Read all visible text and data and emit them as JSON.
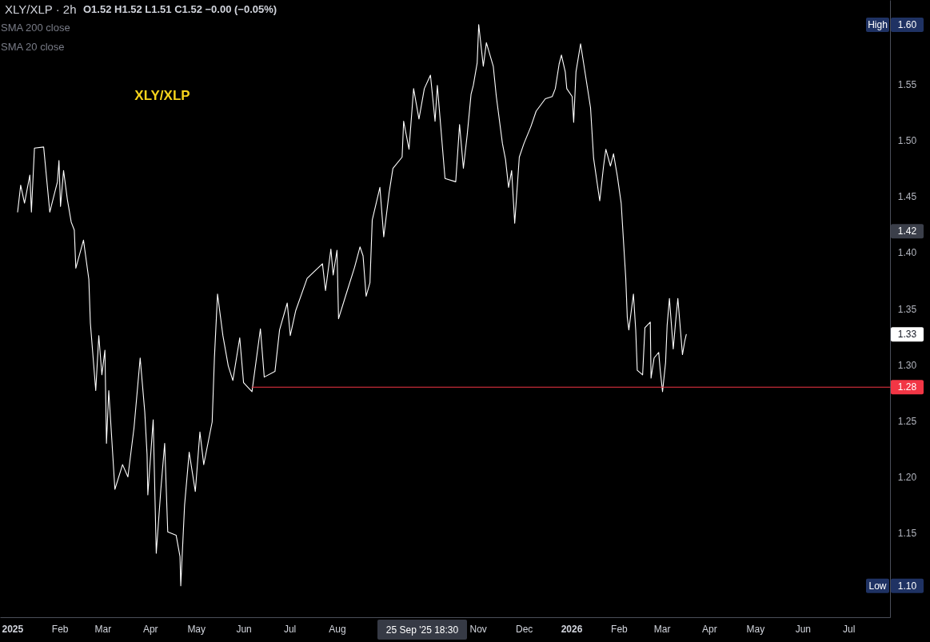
{
  "chart_data": {
    "type": "line",
    "title": "XLY/XLP · 2h",
    "annotations": [
      "O1.52 H1.52 L1.51 C1.52 −0.00 (−0.05%)",
      "SMA 200 close",
      "SMA 20 close",
      "XLY/XLP",
      "25 Sep '25  18:30",
      {
        "text": "High",
        "y": 1.603
      },
      {
        "text": "1.60",
        "y": 1.603
      },
      {
        "text": "1.42",
        "y": 1.419
      },
      {
        "text": "1.33",
        "y": 1.327
      },
      {
        "text": "1.28",
        "y": 1.28
      },
      {
        "text": "Low",
        "y": 1.103
      },
      {
        "text": "1.10",
        "y": 1.103
      }
    ],
    "xlim": [
      "2024-12-24",
      "2026-07-28"
    ],
    "ylim": [
      1.075,
      1.625
    ],
    "xticks": [
      {
        "value": "2025-01-01",
        "label": "2025"
      },
      {
        "value": "2025-02-01",
        "label": "Feb"
      },
      {
        "value": "2025-03-01",
        "label": "Mar"
      },
      {
        "value": "2025-04-01",
        "label": "Apr"
      },
      {
        "value": "2025-05-01",
        "label": "May"
      },
      {
        "value": "2025-06-01",
        "label": "Jun"
      },
      {
        "value": "2025-07-01",
        "label": "Jul"
      },
      {
        "value": "2025-08-01",
        "label": "Aug"
      },
      {
        "value": "2025-11-01",
        "label": "Nov"
      },
      {
        "value": "2025-12-01",
        "label": "Dec"
      },
      {
        "value": "2026-01-01",
        "label": "2026"
      },
      {
        "value": "2026-02-01",
        "label": "Feb"
      },
      {
        "value": "2026-03-01",
        "label": "Mar"
      },
      {
        "value": "2026-04-01",
        "label": "Apr"
      },
      {
        "value": "2026-05-01",
        "label": "May"
      },
      {
        "value": "2026-06-01",
        "label": "Jun"
      },
      {
        "value": "2026-07-01",
        "label": "Jul"
      }
    ],
    "yticks": [
      1.15,
      {
        "value": 1.2,
        "label": "1.20"
      },
      1.25,
      {
        "value": 1.3,
        "label": "1.30"
      },
      1.35,
      {
        "value": 1.4,
        "label": "1.40"
      },
      1.45,
      {
        "value": 1.5,
        "label": "1.50"
      },
      1.55
    ],
    "x": [
      "2025-01-04T12:00",
      "2025-01-06T12:00",
      "2025-01-09",
      "2025-01-12T12:00",
      "2025-01-13T12:00",
      "2025-01-15T12:00",
      "2025-01-21T12:00",
      "2025-01-25T12:00",
      "2025-01-30T12:00",
      "2025-01-31T12:00",
      "2025-02-01T12:00",
      "2025-02-03T12:00",
      "2025-02-06",
      "2025-02-08T12:00",
      "2025-02-10T12:00",
      "2025-02-11T12:00",
      "2025-02-16T12:00",
      "2025-02-20",
      "2025-02-21",
      "2025-02-24T12:00",
      "2025-02-26T12:00",
      "2025-02-28T12:00",
      "2025-03-02T12:00",
      "2025-03-03T12:00",
      "2025-03-05",
      "2025-03-09",
      "2025-03-14",
      "2025-03-17T12:00",
      "2025-03-21T12:00",
      "2025-03-25T12:00",
      "2025-03-28T12:00",
      "2025-03-30",
      "2025-03-30T12:00",
      "2025-04-03",
      "2025-04-05",
      "2025-04-08",
      "2025-04-10T12:00",
      "2025-04-12T12:00",
      "2025-04-18",
      "2025-04-20T12:00",
      "2025-04-21",
      "2025-04-23T12:00",
      "2025-04-26T12:00",
      "2025-04-30T12:00",
      "2025-05-03T12:00",
      "2025-05-06",
      "2025-05-11T12:00",
      "2025-05-13",
      "2025-05-15",
      "2025-05-18T12:00",
      "2025-05-22",
      "2025-05-25",
      "2025-05-29T12:00",
      "2025-06-01",
      "2025-06-06T12:00",
      "2025-06-12",
      "2025-06-14T12:00",
      "2025-06-21T12:00",
      "2025-06-24T12:00",
      "2025-06-29T12:00",
      "2025-07-01T12:00",
      "2025-07-05",
      "2025-07-12T12:00",
      "2025-07-22T12:00",
      "2025-07-24T12:00",
      "2025-07-28",
      "2025-07-29T12:00",
      "2025-08-01",
      "2025-08-02",
      "2025-08-07",
      "2025-08-12T12:00",
      "2025-08-16",
      "2025-08-18",
      "2025-08-20",
      "2025-08-22T12:00",
      "2025-08-24",
      "2025-08-29",
      "2025-08-31T12:00",
      "2025-09-04",
      "2025-09-06T12:00",
      "2025-09-12T12:00",
      "2025-09-13T12:00",
      "2025-09-17",
      "2025-09-20",
      "2025-09-23T12:00",
      "2025-09-27",
      "2025-10-01",
      "2025-10-04",
      "2025-10-05T12:00",
      "2025-10-10T12:00",
      "2025-10-17T12:00",
      "2025-10-20",
      "2025-10-22T12:00",
      "2025-10-25",
      "2025-10-27T12:00",
      "2025-10-29",
      "2025-10-31T12:00",
      "2025-11-01T12:00",
      "2025-11-04T12:00",
      "2025-11-06T12:00",
      "2025-11-11",
      "2025-11-13",
      "2025-11-17",
      "2025-11-19",
      "2025-11-21",
      "2025-11-23",
      "2025-11-25",
      "2025-11-28",
      "2025-12-01",
      "2025-12-05T12:00",
      "2025-12-09",
      "2025-12-15",
      "2025-12-19T12:00",
      "2025-12-21T12:00",
      "2025-12-24",
      "2025-12-25T12:00",
      "2025-12-28",
      "2025-12-29",
      "2026-01-01T12:00",
      "2026-01-02T12:00",
      "2026-01-04",
      "2026-01-07",
      "2026-01-13T12:00",
      "2026-01-15T12:00",
      "2026-01-19T12:00",
      "2026-01-22",
      "2026-01-23T12:00",
      "2026-01-26T12:00",
      "2026-01-28T12:00",
      "2026-01-31",
      "2026-02-02T12:00",
      "2026-02-05T12:00",
      "2026-02-06T12:00",
      "2026-02-07T12:00",
      "2026-02-10T12:00",
      "2026-02-12",
      "2026-02-13",
      "2026-02-16T12:00",
      "2026-02-18",
      "2026-02-21T12:00",
      "2026-02-22",
      "2026-02-24",
      "2026-02-27",
      "2026-02-28",
      "2026-03-01T12:00",
      "2026-03-03T12:00",
      "2026-03-04T12:00",
      "2026-03-06",
      "2026-03-08T12:00",
      "2026-03-10",
      "2026-03-11T12:00",
      "2026-03-13T12:00",
      "2026-03-14T12:00",
      "2026-03-16",
      "2026-03-17"
    ],
    "series": [
      {
        "color": "#ffffff",
        "values": [
          1.436,
          1.46,
          1.444,
          1.469,
          1.436,
          1.493,
          1.494,
          1.436,
          1.463,
          1.482,
          1.441,
          1.473,
          1.447,
          1.427,
          1.42,
          1.386,
          1.411,
          1.376,
          1.337,
          1.277,
          1.326,
          1.291,
          1.313,
          1.23,
          1.277,
          1.189,
          1.211,
          1.2,
          1.244,
          1.306,
          1.258,
          1.22,
          1.184,
          1.251,
          1.132,
          1.189,
          1.23,
          1.151,
          1.148,
          1.129,
          1.103,
          1.175,
          1.222,
          1.187,
          1.24,
          1.211,
          1.249,
          1.307,
          1.363,
          1.326,
          1.299,
          1.286,
          1.324,
          1.284,
          1.276,
          1.332,
          1.289,
          1.294,
          1.331,
          1.355,
          1.326,
          1.348,
          1.377,
          1.39,
          1.366,
          1.403,
          1.38,
          1.402,
          1.341,
          1.363,
          1.387,
          1.405,
          1.397,
          1.361,
          1.373,
          1.429,
          1.458,
          1.414,
          1.453,
          1.475,
          1.485,
          1.517,
          1.492,
          1.546,
          1.519,
          1.546,
          1.558,
          1.517,
          1.549,
          1.466,
          1.463,
          1.514,
          1.475,
          1.505,
          1.541,
          1.549,
          1.569,
          1.603,
          1.566,
          1.587,
          1.566,
          1.539,
          1.497,
          1.483,
          1.458,
          1.473,
          1.426,
          1.485,
          1.497,
          1.512,
          1.526,
          1.537,
          1.539,
          1.546,
          1.568,
          1.576,
          1.561,
          1.546,
          1.539,
          1.516,
          1.561,
          1.586,
          1.529,
          1.484,
          1.446,
          1.477,
          1.492,
          1.477,
          1.488,
          1.468,
          1.444,
          1.377,
          1.342,
          1.331,
          1.363,
          1.331,
          1.295,
          1.291,
          1.333,
          1.338,
          1.288,
          1.306,
          1.311,
          1.295,
          1.276,
          1.302,
          1.335,
          1.359,
          1.314,
          1.338,
          1.359,
          1.326,
          1.309,
          1.321,
          1.327
        ]
      },
      {
        "type": "line",
        "color": "#f23645",
        "x": [
          "2025-06-06T12:00",
          "2026-07-28"
        ],
        "values": [
          1.28,
          1.28
        ]
      }
    ]
  }
}
